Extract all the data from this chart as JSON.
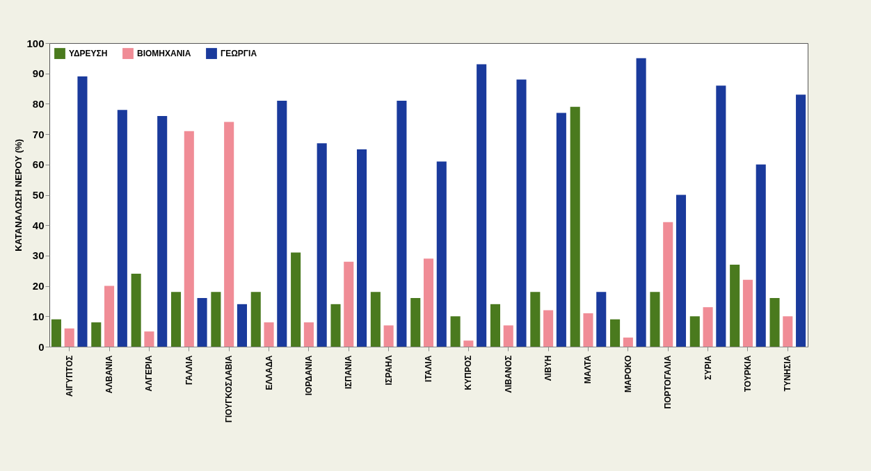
{
  "chart_data": {
    "type": "bar",
    "ylabel": "ΚΑΤΑΝΑΛΩΣΗ ΝΕΡΟΥ (%)",
    "categories": [
      "ΑΙΓΥΠΤΟΣ",
      "ΑΛΒΑΝΙΑ",
      "ΑΛΓΕΡΙΑ",
      "ΓΑΛΛΙΑ",
      "ΓΙΟΥΓΚΟΣΛΑΒΙΑ",
      "ΕΛΛΑΔΑ",
      "ΙΟΡΔΑΝΙΑ",
      "ΙΣΠΑΝΙΑ",
      "ΙΣΡΑΗΛ",
      "ΙΤΑΛΙΑ",
      "ΚΥΠΡΟΣ",
      "ΛΙΒΑΝΟΣ",
      "ΛΙΒΥΗ",
      "ΜΑΛΤΑ",
      "ΜΑΡΟΚΟ",
      "ΠΟΡΤΟΓΑΛΙΑ",
      "ΣΥΡΙΑ",
      "ΤΟΥΡΚΙΑ",
      "ΤΥΝΗΣΙΑ"
    ],
    "series": [
      {
        "name": "ΥΔΡΕΥΣΗ",
        "color": "#4a7a1e",
        "values": [
          9,
          8,
          24,
          18,
          18,
          18,
          31,
          14,
          18,
          16,
          10,
          14,
          18,
          79,
          9,
          18,
          10,
          27,
          16
        ]
      },
      {
        "name": "ΒΙΟΜΗΧΑΝΙΑ",
        "color": "#f08c96",
        "values": [
          6,
          20,
          5,
          71,
          74,
          8,
          8,
          28,
          7,
          29,
          2,
          7,
          12,
          11,
          3,
          41,
          13,
          22,
          10
        ]
      },
      {
        "name": "ΓΕΩΡΓΙΑ",
        "color": "#1a3a9c",
        "values": [
          89,
          78,
          76,
          16,
          14,
          81,
          67,
          65,
          81,
          61,
          93,
          88,
          77,
          18,
          95,
          50,
          86,
          60,
          83
        ]
      }
    ],
    "ylim": [
      0,
      100
    ],
    "yticks": [
      0,
      10,
      20,
      30,
      40,
      50,
      60,
      70,
      80,
      90,
      100
    ],
    "grid": false,
    "legend": "top left"
  }
}
